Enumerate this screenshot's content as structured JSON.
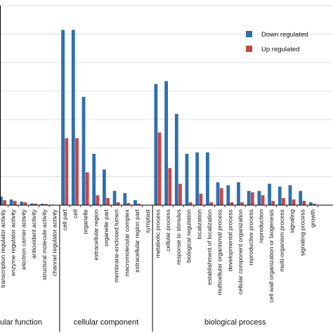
{
  "chart_data": {
    "type": "bar",
    "title": "",
    "xlabel": "",
    "ylabel": "",
    "ylim": [
      0,
      14
    ],
    "grid": true,
    "legend": {
      "placement": "top-right",
      "entries": [
        "Down regulated",
        "Up regulated"
      ]
    },
    "categories": [
      "transcription regulator activity",
      "enzyme regulator activity",
      "electron carrier activity",
      "antioxidant activity",
      "structural molecule activity",
      "channel regulator activity",
      "cell part",
      "cell",
      "organelle",
      "extracellular region",
      "organelle part",
      "membrane-enclosed lumen",
      "macromolecular complex",
      "extracellular region part",
      "symplast",
      "metabolic process",
      "cellular process",
      "response to stimulus",
      "biological regulation",
      "localization",
      "establishment of localization",
      "multicellular organismal process",
      "developmental process",
      "cellular component organization",
      "reproductive process",
      "reproduction",
      "cell wall organization or biogenesis",
      "multi-organism process",
      "signaling",
      "signaling process",
      "growth"
    ],
    "series": [
      {
        "name": "Down regulated",
        "color": "#2f6fad",
        "values": [
          0.6,
          0.4,
          0.25,
          0.12,
          0.1,
          0.04,
          12.3,
          12.3,
          7.6,
          3.6,
          2.5,
          1.0,
          0.85,
          0.35,
          0.0,
          8.5,
          8.7,
          6.4,
          3.6,
          3.7,
          3.7,
          1.6,
          1.4,
          1.6,
          1.0,
          1.0,
          1.5,
          1.3,
          1.4,
          1.0,
          0.2
        ]
      },
      {
        "name": "Up regulated",
        "color": "#c9474a",
        "values": [
          0.35,
          0.3,
          0.2,
          0.1,
          0.08,
          0.0,
          4.7,
          4.7,
          2.3,
          0.7,
          0.5,
          0.2,
          0.15,
          0.1,
          0.0,
          5.1,
          2.6,
          1.5,
          0.2,
          0.8,
          0.2,
          1.2,
          0.2,
          0.2,
          0.9,
          0.7,
          0.3,
          0.5,
          0.4,
          0.3,
          0.1
        ]
      }
    ],
    "groups": [
      {
        "label": "ular function",
        "from": 0,
        "to": 5
      },
      {
        "label": "cellular component",
        "from": 6,
        "to": 14
      },
      {
        "label": "biological process",
        "from": 15,
        "to": 30
      }
    ]
  }
}
